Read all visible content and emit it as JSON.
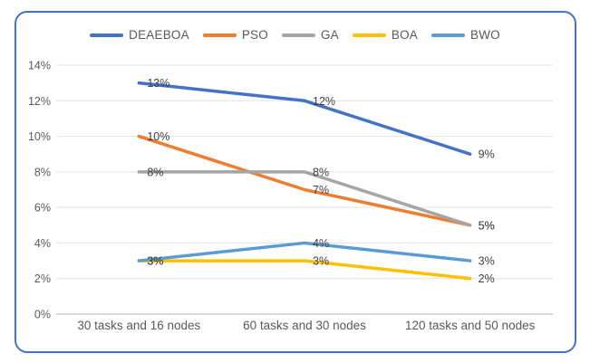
{
  "chart_data": {
    "type": "line",
    "title": "",
    "categories": [
      "30 tasks and 16 nodes",
      "60 tasks and 30 nodes",
      "120 tasks and 50 nodes"
    ],
    "series": [
      {
        "name": "DEAEBOA",
        "color": "#4472C4",
        "values": [
          13,
          12,
          9
        ],
        "labels": [
          "13%",
          "12%",
          "9%"
        ]
      },
      {
        "name": "PSO",
        "color": "#ED7D31",
        "values": [
          10,
          7,
          5
        ],
        "labels": [
          "10%",
          "7%",
          "5%"
        ]
      },
      {
        "name": "GA",
        "color": "#A5A5A5",
        "values": [
          8,
          8,
          5
        ],
        "labels": [
          "8%",
          "8%",
          "5%"
        ]
      },
      {
        "name": "BOA",
        "color": "#FFC000",
        "values": [
          3,
          3,
          2
        ],
        "labels": [
          "3%",
          "3%",
          "2%"
        ]
      },
      {
        "name": "BWO",
        "color": "#5B9BD5",
        "values": [
          3,
          4,
          3
        ],
        "labels": [
          "3%",
          "4%",
          "3%"
        ]
      }
    ],
    "y_axis": {
      "min": 0,
      "max": 14,
      "step": 2,
      "tick_labels": [
        "0%",
        "2%",
        "4%",
        "6%",
        "8%",
        "10%",
        "12%",
        "14%"
      ],
      "unit": "%"
    },
    "legend_position": "top",
    "grid": true,
    "data_labels": true
  },
  "styles": {
    "card_border_color": "#4472C4",
    "gridline_color": "#E2E2E2",
    "axis_line_color": "#D9D9D9",
    "tick_label_color": "#595959",
    "data_label_color": "#404040",
    "legend_text_color": "#595959",
    "background_color": "#FFFFFF"
  }
}
